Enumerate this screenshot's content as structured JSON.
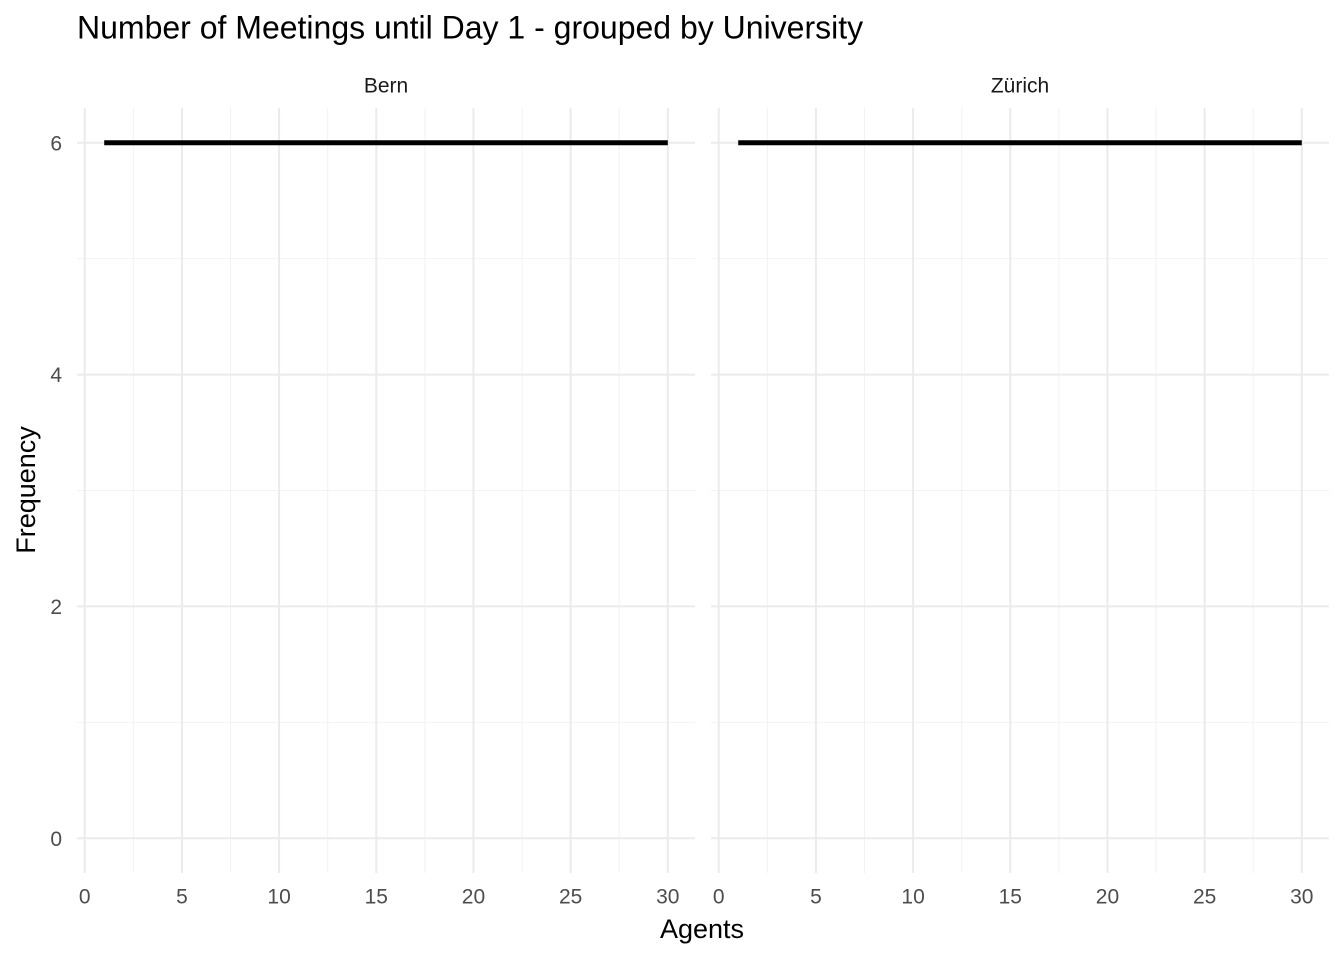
{
  "title": "Number of Meetings until Day 1 - grouped by University",
  "x_label": "Agents",
  "y_label": "Frequency",
  "chart_data": [
    {
      "type": "line",
      "title": "Bern",
      "x": [
        1,
        30
      ],
      "values": [
        6,
        6
      ],
      "color": "#000000",
      "xlim": [
        -0.4,
        31.4
      ],
      "xticks": [
        0,
        5,
        10,
        15,
        20,
        25,
        30
      ],
      "minor_xticks": [
        2.5,
        7.5,
        12.5,
        17.5,
        22.5,
        27.5
      ],
      "ylim": [
        -0.3,
        6.3
      ],
      "yticks": [
        0,
        2,
        4,
        6
      ],
      "minor_yticks": [
        1,
        3,
        5
      ],
      "grid": true
    },
    {
      "type": "line",
      "title": "Zürich",
      "x": [
        1,
        30
      ],
      "values": [
        6,
        6
      ],
      "color": "#000000",
      "xlim": [
        -0.4,
        31.4
      ],
      "xticks": [
        0,
        5,
        10,
        15,
        20,
        25,
        30
      ],
      "minor_xticks": [
        2.5,
        7.5,
        12.5,
        17.5,
        22.5,
        27.5
      ],
      "ylim": [
        -0.3,
        6.3
      ],
      "yticks": [
        0,
        2,
        4,
        6
      ],
      "minor_yticks": [
        1,
        3,
        5
      ],
      "grid": true
    }
  ]
}
